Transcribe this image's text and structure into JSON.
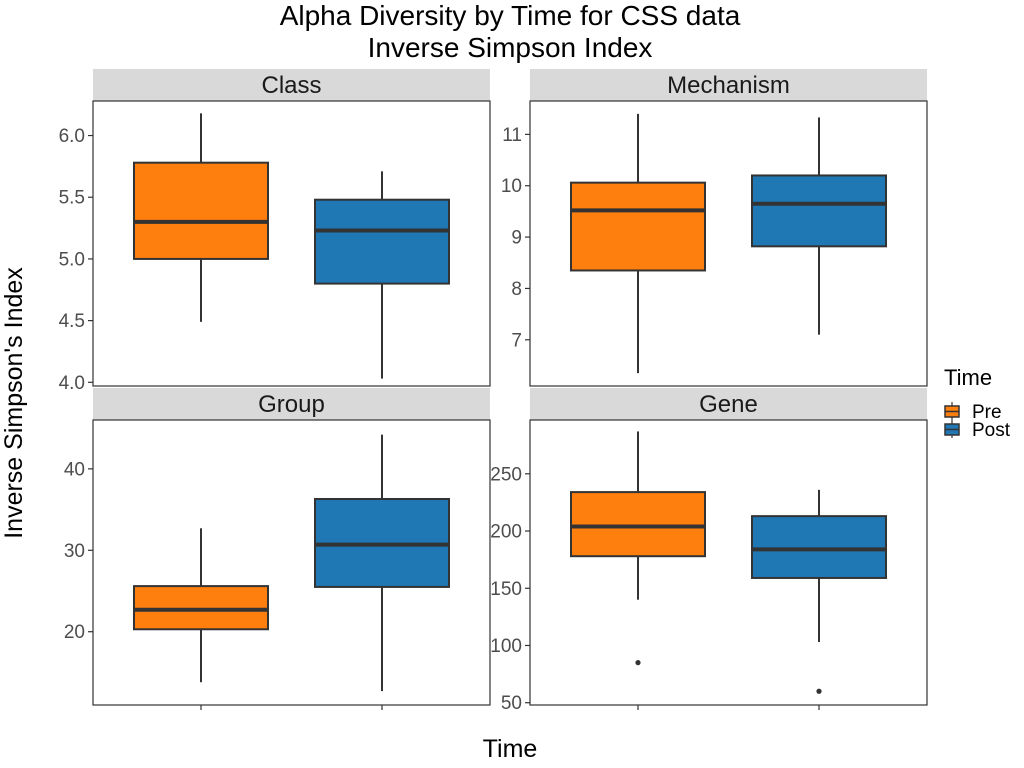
{
  "chart_data": {
    "type": "box",
    "title": "Alpha Diversity by Time for CSS data",
    "subtitle": "Inverse Simpson Index",
    "xlabel": "Time",
    "ylabel": "Inverse Simpson's Index",
    "legend": {
      "title": "Time",
      "placement": "right",
      "entries": [
        {
          "label": "Pre",
          "color": "#ff7f0e"
        },
        {
          "label": "Post",
          "color": "#1f77b4"
        }
      ]
    },
    "categories": [
      "Pre",
      "Post"
    ],
    "panels": [
      {
        "name": "Class",
        "ylim": [
          3.97,
          6.28
        ],
        "yticks": [
          4.0,
          4.5,
          5.0,
          5.5,
          6.0
        ],
        "tick_labels": [
          "4.0",
          "4.5",
          "5.0",
          "5.5",
          "6.0"
        ],
        "boxes": [
          {
            "group": "Pre",
            "min": 4.49,
            "q1": 5.0,
            "median": 5.3,
            "q3": 5.78,
            "max": 6.18,
            "outliers": []
          },
          {
            "group": "Post",
            "min": 4.03,
            "q1": 4.8,
            "median": 5.23,
            "q3": 5.48,
            "max": 5.71,
            "outliers": []
          }
        ]
      },
      {
        "name": "Mechanism",
        "ylim": [
          6.1,
          11.65
        ],
        "yticks": [
          7,
          8,
          9,
          10,
          11
        ],
        "tick_labels": [
          "7",
          "8",
          "9",
          "10",
          "11"
        ],
        "boxes": [
          {
            "group": "Pre",
            "min": 6.35,
            "q1": 8.35,
            "median": 9.52,
            "q3": 10.06,
            "max": 11.4,
            "outliers": []
          },
          {
            "group": "Post",
            "min": 7.1,
            "q1": 8.82,
            "median": 9.65,
            "q3": 10.2,
            "max": 11.33,
            "outliers": []
          }
        ]
      },
      {
        "name": "Group",
        "ylim": [
          11.0,
          46.0
        ],
        "yticks": [
          20,
          30,
          40
        ],
        "tick_labels": [
          "20",
          "30",
          "40"
        ],
        "boxes": [
          {
            "group": "Pre",
            "min": 13.8,
            "q1": 20.3,
            "median": 22.7,
            "q3": 25.6,
            "max": 32.7,
            "outliers": []
          },
          {
            "group": "Post",
            "min": 12.7,
            "q1": 25.5,
            "median": 30.7,
            "q3": 36.3,
            "max": 44.2,
            "outliers": []
          }
        ]
      },
      {
        "name": "Gene",
        "ylim": [
          48.0,
          297.0
        ],
        "yticks": [
          50,
          100,
          150,
          200,
          250
        ],
        "tick_labels": [
          "50",
          "100",
          "150",
          "200",
          "250"
        ],
        "boxes": [
          {
            "group": "Pre",
            "min": 140,
            "q1": 178,
            "median": 204,
            "q3": 234,
            "max": 287,
            "outliers": [
              85
            ]
          },
          {
            "group": "Post",
            "min": 103,
            "q1": 159,
            "median": 184,
            "q3": 213,
            "max": 236,
            "outliers": [
              60
            ]
          }
        ]
      }
    ]
  }
}
